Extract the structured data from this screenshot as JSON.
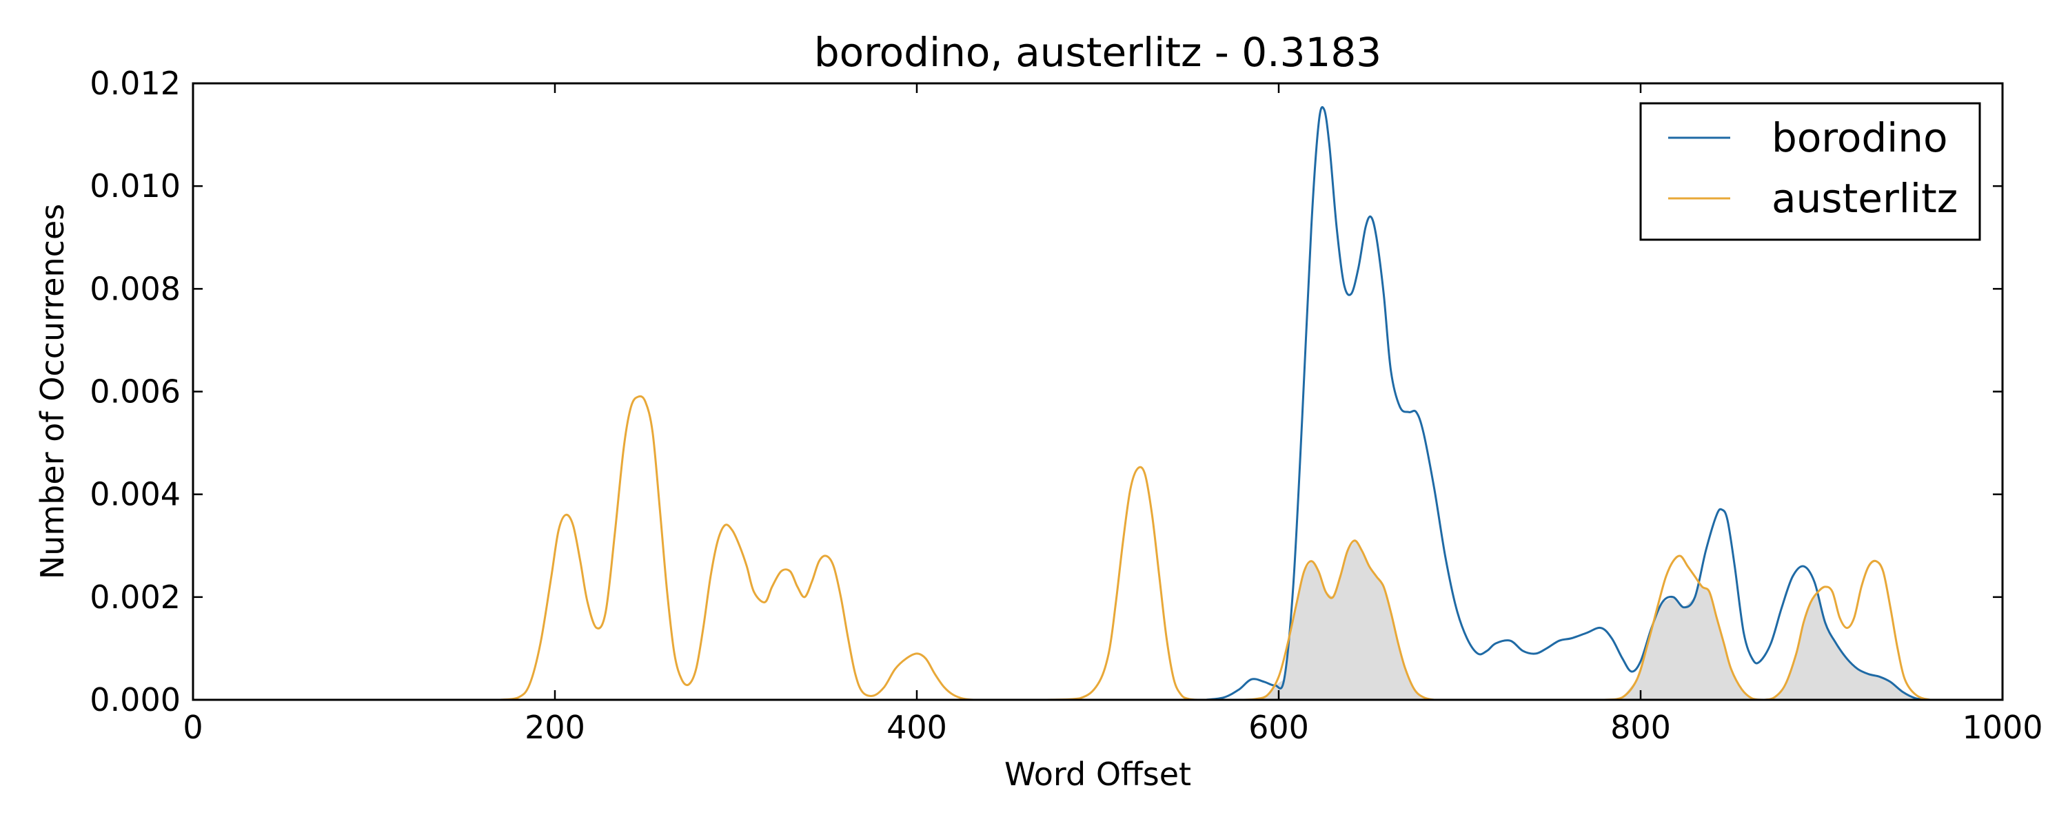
{
  "chart_data": {
    "type": "line",
    "title": "borodino, austerlitz - 0.3183",
    "xlabel": "Word Offset",
    "ylabel": "Number of Occurrences",
    "xlim": [
      0,
      1000
    ],
    "ylim": [
      0,
      0.012
    ],
    "xticks": [
      "0",
      "200",
      "400",
      "600",
      "800",
      "1000"
    ],
    "yticks": [
      "0.000",
      "0.002",
      "0.004",
      "0.006",
      "0.008",
      "0.010",
      "0.012"
    ],
    "grid": false,
    "legend_position": "top-right",
    "overlap_fill_color": "#dddddd",
    "series": [
      {
        "name": "borodino",
        "color": "#1f6aa5",
        "x": [
          560,
          570,
          578,
          585,
          592,
          598,
          603,
          608,
          613,
          618,
          622,
          625,
          628,
          632,
          636,
          640,
          644,
          648,
          651,
          654,
          658,
          662,
          667,
          672,
          676,
          680,
          686,
          692,
          698,
          704,
          710,
          715,
          720,
          728,
          735,
          742,
          748,
          755,
          762,
          770,
          778,
          784,
          790,
          795,
          800,
          806,
          812,
          818,
          824,
          830,
          836,
          842,
          845,
          848,
          852,
          857,
          862,
          866,
          872,
          878,
          884,
          890,
          896,
          902,
          908,
          914,
          920,
          926,
          932,
          938,
          945,
          952,
          960
        ],
        "y": [
          0.0,
          5e-05,
          0.0002,
          0.0004,
          0.00035,
          0.00028,
          0.0004,
          0.0022,
          0.0055,
          0.0092,
          0.0112,
          0.0115,
          0.0108,
          0.0092,
          0.0081,
          0.0079,
          0.0084,
          0.0092,
          0.0094,
          0.009,
          0.0079,
          0.0064,
          0.0057,
          0.0056,
          0.0056,
          0.0052,
          0.0041,
          0.0028,
          0.0018,
          0.0012,
          0.0009,
          0.00095,
          0.0011,
          0.00115,
          0.00095,
          0.0009,
          0.001,
          0.00115,
          0.0012,
          0.0013,
          0.0014,
          0.0012,
          0.0008,
          0.00055,
          0.00075,
          0.0014,
          0.0019,
          0.002,
          0.0018,
          0.002,
          0.0029,
          0.0036,
          0.0037,
          0.0035,
          0.0026,
          0.0013,
          0.00078,
          0.00075,
          0.0011,
          0.0018,
          0.0024,
          0.0026,
          0.0023,
          0.0015,
          0.0011,
          0.0008,
          0.0006,
          0.0005,
          0.00045,
          0.00035,
          0.00015,
          3e-05,
          0.0
        ]
      },
      {
        "name": "austerlitz",
        "color": "#e8a838",
        "x": [
          170,
          180,
          186,
          192,
          198,
          202,
          206,
          210,
          214,
          218,
          223,
          228,
          233,
          238,
          242,
          246,
          250,
          254,
          258,
          262,
          266,
          270,
          274,
          278,
          282,
          286,
          290,
          294,
          298,
          302,
          306,
          310,
          316,
          320,
          325,
          330,
          334,
          338,
          342,
          346,
          350,
          354,
          358,
          362,
          366,
          370,
          376,
          382,
          388,
          394,
          400,
          405,
          410,
          415,
          420,
          426,
          432,
          440,
          470,
          490,
          500,
          506,
          510,
          514,
          518,
          522,
          526,
          530,
          534,
          538,
          542,
          546,
          550,
          556,
          565,
          580,
          588,
          594,
          600,
          605,
          610,
          614,
          618,
          622,
          626,
          630,
          634,
          638,
          642,
          646,
          650,
          654,
          658,
          662,
          666,
          670,
          675,
          680,
          686,
          692,
          700,
          760,
          780,
          790,
          798,
          804,
          810,
          814,
          818,
          822,
          826,
          830,
          834,
          838,
          842,
          846,
          850,
          856,
          862,
          868,
          874,
          880,
          886,
          890,
          894,
          898,
          902,
          906,
          910,
          914,
          918,
          922,
          926,
          930,
          934,
          938,
          942,
          946,
          952,
          960,
          970
        ],
        "y": [
          0.0,
          5e-05,
          0.0003,
          0.0011,
          0.0024,
          0.0033,
          0.0036,
          0.0034,
          0.0027,
          0.0019,
          0.0014,
          0.0017,
          0.0032,
          0.0049,
          0.0057,
          0.0059,
          0.0058,
          0.0052,
          0.0037,
          0.0021,
          0.0009,
          0.0004,
          0.0003,
          0.0006,
          0.0014,
          0.0024,
          0.0031,
          0.0034,
          0.0033,
          0.003,
          0.0026,
          0.0021,
          0.0019,
          0.0022,
          0.0025,
          0.0025,
          0.0022,
          0.002,
          0.0023,
          0.0027,
          0.0028,
          0.0026,
          0.002,
          0.0012,
          0.0005,
          0.00015,
          8e-05,
          0.00025,
          0.0006,
          0.0008,
          0.0009,
          0.0008,
          0.0005,
          0.00025,
          0.0001,
          2e-05,
          0.0,
          0.0,
          0.0,
          3e-05,
          0.0003,
          0.0009,
          0.0019,
          0.0031,
          0.0041,
          0.0045,
          0.0044,
          0.0036,
          0.0024,
          0.0012,
          0.0004,
          0.0001,
          2e-05,
          0.0,
          0.0,
          0.0,
          2e-05,
          0.0001,
          0.00045,
          0.0011,
          0.0019,
          0.0025,
          0.0027,
          0.0025,
          0.0021,
          0.002,
          0.0024,
          0.0029,
          0.0031,
          0.0029,
          0.0026,
          0.0024,
          0.0022,
          0.0017,
          0.0011,
          0.0006,
          0.0002,
          5e-05,
          0.0,
          0.0,
          0.0,
          0.0,
          0.0,
          5e-05,
          0.0004,
          0.0011,
          0.0019,
          0.0024,
          0.0027,
          0.0028,
          0.0026,
          0.0024,
          0.0022,
          0.0021,
          0.0016,
          0.0011,
          0.0006,
          0.0002,
          2e-05,
          0.0,
          5e-05,
          0.0003,
          0.0009,
          0.0015,
          0.0019,
          0.0021,
          0.0022,
          0.0021,
          0.0016,
          0.0014,
          0.0016,
          0.0022,
          0.0026,
          0.0027,
          0.0025,
          0.0018,
          0.001,
          0.0004,
          0.0001,
          0.0,
          0.0
        ]
      }
    ]
  }
}
